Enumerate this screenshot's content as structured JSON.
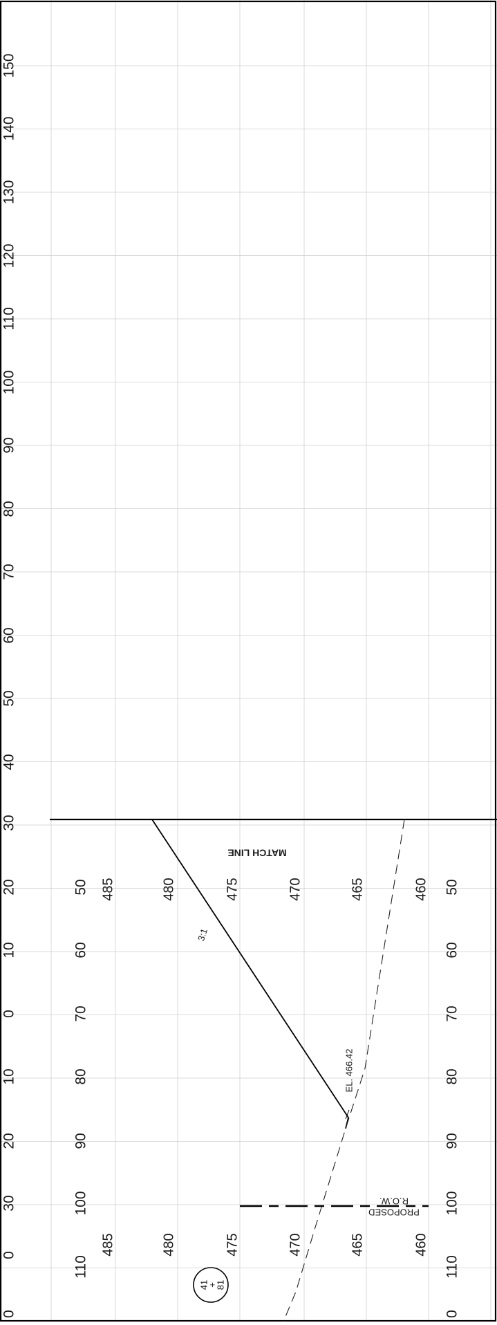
{
  "upper_offsets": [
    "150",
    "140",
    "130",
    "120",
    "110",
    "100",
    "90",
    "80",
    "70",
    "60",
    "50",
    "40",
    "30"
  ],
  "lower_offsets": [
    "20",
    "10",
    "0",
    "10",
    "20",
    "30",
    "0",
    "0"
  ],
  "left_offsets": [
    "50",
    "60",
    "70",
    "80",
    "90",
    "100",
    "110"
  ],
  "right_offsets": [
    "50",
    "60",
    "70",
    "80",
    "90",
    "100",
    "110",
    "0"
  ],
  "elevations_upper": [
    "485",
    "480",
    "475",
    "470",
    "465",
    "460"
  ],
  "elevations_lower": [
    "485",
    "480",
    "475",
    "470",
    "465",
    "460"
  ],
  "match_line_label": "MATCH LINE",
  "slope_label": "3:1",
  "elevation_callout": "EL. 466.42",
  "row_label": {
    "line1": "R.O.W.",
    "line2": "PROPOSED"
  },
  "station": {
    "top": "41",
    "middle": "+",
    "bottom": "81"
  }
}
